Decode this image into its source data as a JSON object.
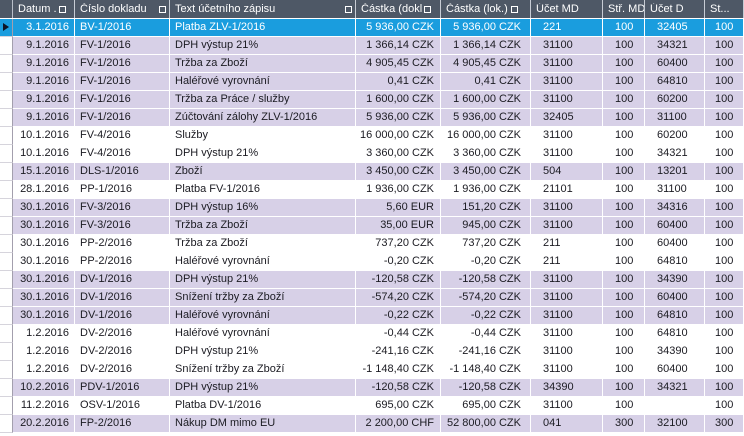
{
  "grid": {
    "columns": [
      {
        "key": "datum",
        "label": "Datum ...",
        "filter_box": true
      },
      {
        "key": "cislo",
        "label": "Číslo dokladu",
        "filter_box": true
      },
      {
        "key": "text",
        "label": "Text účetního zápisu",
        "filter_box": true
      },
      {
        "key": "castka_dokl",
        "label": "Částka (dokl.)",
        "filter_box": true
      },
      {
        "key": "castka_lok",
        "label": "Částka (lok.)",
        "filter_box": true
      },
      {
        "key": "ucet_md",
        "label": "Účet MD",
        "filter_box": false
      },
      {
        "key": "str_md",
        "label": "Stř. MD",
        "filter_box": false
      },
      {
        "key": "ucet_d",
        "label": "Účet D",
        "filter_box": false
      },
      {
        "key": "st",
        "label": "St...",
        "filter_box": false
      }
    ],
    "rows": [
      {
        "selected": true,
        "tint": "white",
        "datum": "3.1.2016",
        "cislo": "BV-1/2016",
        "text": "Platba ZLV-1/2016",
        "castka_dokl": "5 936,00 CZK",
        "castka_lok": "5 936,00 CZK",
        "ucet_md": "221",
        "str_md": "100",
        "ucet_d": "32405",
        "st": "100"
      },
      {
        "selected": false,
        "tint": "lavender",
        "datum": "9.1.2016",
        "cislo": "FV-1/2016",
        "text": "DPH výstup 21%",
        "castka_dokl": "1 366,14 CZK",
        "castka_lok": "1 366,14 CZK",
        "ucet_md": "31100",
        "str_md": "100",
        "ucet_d": "34321",
        "st": "100"
      },
      {
        "selected": false,
        "tint": "lavender",
        "datum": "9.1.2016",
        "cislo": "FV-1/2016",
        "text": "Tržba za Zboží",
        "castka_dokl": "4 905,45 CZK",
        "castka_lok": "4 905,45 CZK",
        "ucet_md": "31100",
        "str_md": "100",
        "ucet_d": "60400",
        "st": "100"
      },
      {
        "selected": false,
        "tint": "lavender",
        "datum": "9.1.2016",
        "cislo": "FV-1/2016",
        "text": "Haléřové vyrovnání",
        "castka_dokl": "0,41 CZK",
        "castka_lok": "0,41 CZK",
        "ucet_md": "31100",
        "str_md": "100",
        "ucet_d": "64810",
        "st": "100"
      },
      {
        "selected": false,
        "tint": "lavender",
        "datum": "9.1.2016",
        "cislo": "FV-1/2016",
        "text": "Tržba za Práce / služby",
        "castka_dokl": "1 600,00 CZK",
        "castka_lok": "1 600,00 CZK",
        "ucet_md": "31100",
        "str_md": "100",
        "ucet_d": "60200",
        "st": "100"
      },
      {
        "selected": false,
        "tint": "lavender",
        "datum": "9.1.2016",
        "cislo": "FV-1/2016",
        "text": "Zúčtování zálohy ZLV-1/2016",
        "castka_dokl": "5 936,00 CZK",
        "castka_lok": "5 936,00 CZK",
        "ucet_md": "32405",
        "str_md": "100",
        "ucet_d": "31100",
        "st": "100"
      },
      {
        "selected": false,
        "tint": "white",
        "datum": "10.1.2016",
        "cislo": "FV-4/2016",
        "text": "Služby",
        "castka_dokl": "16 000,00 CZK",
        "castka_lok": "16 000,00 CZK",
        "ucet_md": "31100",
        "str_md": "100",
        "ucet_d": "60200",
        "st": "100"
      },
      {
        "selected": false,
        "tint": "white",
        "datum": "10.1.2016",
        "cislo": "FV-4/2016",
        "text": "DPH výstup 21%",
        "castka_dokl": "3 360,00 CZK",
        "castka_lok": "3 360,00 CZK",
        "ucet_md": "31100",
        "str_md": "100",
        "ucet_d": "34321",
        "st": "100"
      },
      {
        "selected": false,
        "tint": "lavender",
        "datum": "15.1.2016",
        "cislo": "DLS-1/2016",
        "text": "Zboží",
        "castka_dokl": "3 450,00 CZK",
        "castka_lok": "3 450,00 CZK",
        "ucet_md": "504",
        "str_md": "100",
        "ucet_d": "13201",
        "st": "100"
      },
      {
        "selected": false,
        "tint": "white",
        "datum": "28.1.2016",
        "cislo": "PP-1/2016",
        "text": "Platba FV-1/2016",
        "castka_dokl": "1 936,00 CZK",
        "castka_lok": "1 936,00 CZK",
        "ucet_md": "21101",
        "str_md": "100",
        "ucet_d": "31100",
        "st": "100"
      },
      {
        "selected": false,
        "tint": "lavender",
        "datum": "30.1.2016",
        "cislo": "FV-3/2016",
        "text": "DPH výstup 16%",
        "castka_dokl": "5,60 EUR",
        "castka_lok": "151,20 CZK",
        "ucet_md": "31100",
        "str_md": "100",
        "ucet_d": "34316",
        "st": "100"
      },
      {
        "selected": false,
        "tint": "lavender",
        "datum": "30.1.2016",
        "cislo": "FV-3/2016",
        "text": "Tržba za Zboží",
        "castka_dokl": "35,00 EUR",
        "castka_lok": "945,00 CZK",
        "ucet_md": "31100",
        "str_md": "100",
        "ucet_d": "60400",
        "st": "100"
      },
      {
        "selected": false,
        "tint": "white",
        "datum": "30.1.2016",
        "cislo": "PP-2/2016",
        "text": "Tržba za Zboží",
        "castka_dokl": "737,20 CZK",
        "castka_lok": "737,20 CZK",
        "ucet_md": "211",
        "str_md": "100",
        "ucet_d": "60400",
        "st": "100"
      },
      {
        "selected": false,
        "tint": "white",
        "datum": "30.1.2016",
        "cislo": "PP-2/2016",
        "text": "Haléřové vyrovnání",
        "castka_dokl": "-0,20 CZK",
        "castka_lok": "-0,20 CZK",
        "ucet_md": "211",
        "str_md": "100",
        "ucet_d": "64810",
        "st": "100"
      },
      {
        "selected": false,
        "tint": "lavender",
        "datum": "30.1.2016",
        "cislo": "DV-1/2016",
        "text": "DPH výstup 21%",
        "castka_dokl": "-120,58 CZK",
        "castka_lok": "-120,58 CZK",
        "ucet_md": "31100",
        "str_md": "100",
        "ucet_d": "34390",
        "st": "100"
      },
      {
        "selected": false,
        "tint": "lavender",
        "datum": "30.1.2016",
        "cislo": "DV-1/2016",
        "text": "Snížení tržby za Zboží",
        "castka_dokl": "-574,20 CZK",
        "castka_lok": "-574,20 CZK",
        "ucet_md": "31100",
        "str_md": "100",
        "ucet_d": "60400",
        "st": "100"
      },
      {
        "selected": false,
        "tint": "lavender",
        "datum": "30.1.2016",
        "cislo": "DV-1/2016",
        "text": "Haléřové vyrovnání",
        "castka_dokl": "-0,22 CZK",
        "castka_lok": "-0,22 CZK",
        "ucet_md": "31100",
        "str_md": "100",
        "ucet_d": "64810",
        "st": "100"
      },
      {
        "selected": false,
        "tint": "white",
        "datum": "1.2.2016",
        "cislo": "DV-2/2016",
        "text": "Haléřové vyrovnání",
        "castka_dokl": "-0,44 CZK",
        "castka_lok": "-0,44 CZK",
        "ucet_md": "31100",
        "str_md": "100",
        "ucet_d": "64810",
        "st": "100"
      },
      {
        "selected": false,
        "tint": "white",
        "datum": "1.2.2016",
        "cislo": "DV-2/2016",
        "text": "DPH výstup 21%",
        "castka_dokl": "-241,16 CZK",
        "castka_lok": "-241,16 CZK",
        "ucet_md": "31100",
        "str_md": "100",
        "ucet_d": "34390",
        "st": "100"
      },
      {
        "selected": false,
        "tint": "white",
        "datum": "1.2.2016",
        "cislo": "DV-2/2016",
        "text": "Snížení tržby za Zboží",
        "castka_dokl": "-1 148,40 CZK",
        "castka_lok": "-1 148,40 CZK",
        "ucet_md": "31100",
        "str_md": "100",
        "ucet_d": "60400",
        "st": "100"
      },
      {
        "selected": false,
        "tint": "lavender",
        "datum": "10.2.2016",
        "cislo": "PDV-1/2016",
        "text": "DPH výstup 21%",
        "castka_dokl": "-120,58 CZK",
        "castka_lok": "-120,58 CZK",
        "ucet_md": "34390",
        "str_md": "100",
        "ucet_d": "34321",
        "st": "100"
      },
      {
        "selected": false,
        "tint": "white",
        "datum": "11.2.2016",
        "cislo": "OSV-1/2016",
        "text": "Platba DV-1/2016",
        "castka_dokl": "695,00 CZK",
        "castka_lok": "695,00 CZK",
        "ucet_md": "31100",
        "str_md": "100",
        "ucet_d": "",
        "st": "100"
      },
      {
        "selected": false,
        "tint": "lavender",
        "datum": "20.2.2016",
        "cislo": "FP-2/2016",
        "text": "Nákup DM mimo EU",
        "castka_dokl": "2 200,00 CHF",
        "castka_lok": "52 800,00 CZK",
        "ucet_md": "041",
        "str_md": "300",
        "ucet_d": "32100",
        "st": "300"
      }
    ]
  },
  "colors": {
    "header_bg": "#4E5866",
    "header_text": "#FFFFFF",
    "selected_row_bg": "#1A9DDE",
    "selected_row_text": "#FFFFFF",
    "group_row_bg": "#D7D0E7",
    "plain_row_bg": "#FFFFFF",
    "row_text": "#1B1B22"
  },
  "icons": {
    "current_row_marker": "right-triangle",
    "column_filter": "square-outline"
  }
}
